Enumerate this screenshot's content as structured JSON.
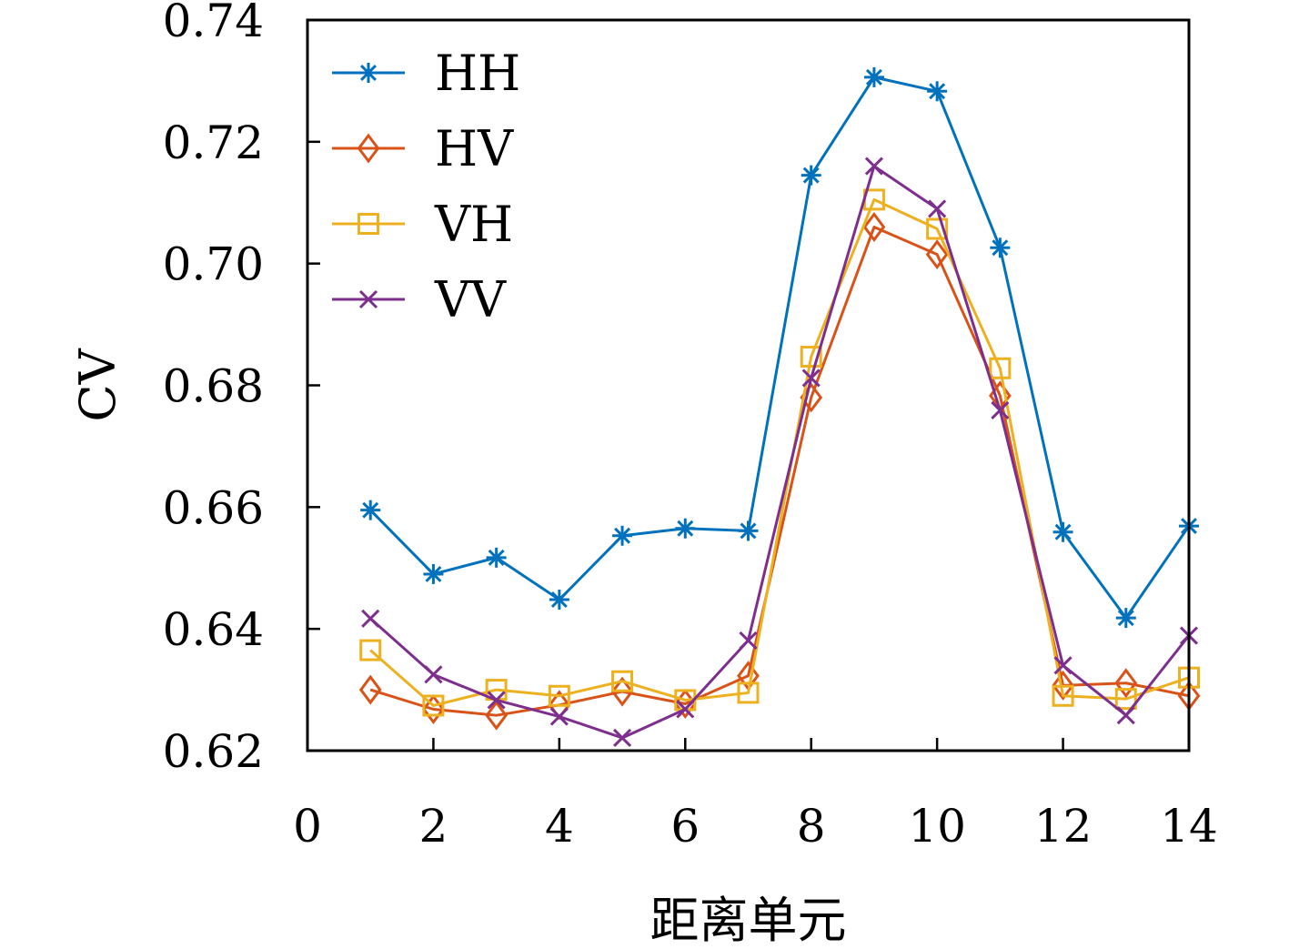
{
  "chart_data": {
    "type": "line",
    "title": "",
    "xlabel": "距离单元",
    "ylabel": "CV",
    "xlim": [
      0,
      14
    ],
    "ylim": [
      0.62,
      0.74
    ],
    "xticks": [
      "0",
      "2",
      "4",
      "6",
      "8",
      "10",
      "12",
      "14"
    ],
    "yticks": [
      "0.62",
      "0.64",
      "0.66",
      "0.68",
      "0.70",
      "0.72",
      "0.74"
    ],
    "grid": false,
    "legend_position": "top-left",
    "x": [
      1,
      2,
      3,
      4,
      5,
      6,
      7,
      8,
      9,
      10,
      11,
      12,
      13,
      14
    ],
    "series": [
      {
        "name": "HH",
        "color": "#0072BD",
        "marker": "asterisk",
        "values": [
          0.6595,
          0.649,
          0.6517,
          0.6448,
          0.6553,
          0.6565,
          0.6561,
          0.7145,
          0.7306,
          0.7283,
          0.7026,
          0.6559,
          0.6418,
          0.6569
        ]
      },
      {
        "name": "HV",
        "color": "#D95319",
        "marker": "diamond",
        "values": [
          0.63,
          0.6268,
          0.6258,
          0.6275,
          0.6297,
          0.6277,
          0.6323,
          0.678,
          0.706,
          0.7015,
          0.6783,
          0.6307,
          0.6311,
          0.629
        ]
      },
      {
        "name": "VH",
        "color": "#EDB120",
        "marker": "square",
        "values": [
          0.6365,
          0.6274,
          0.63,
          0.629,
          0.6314,
          0.6283,
          0.6295,
          0.6847,
          0.7105,
          0.7057,
          0.6828,
          0.629,
          0.6285,
          0.632
        ]
      },
      {
        "name": "VV",
        "color": "#7E2F8E",
        "marker": "x",
        "values": [
          0.6417,
          0.6325,
          0.6283,
          0.6256,
          0.6221,
          0.6268,
          0.6381,
          0.6812,
          0.716,
          0.709,
          0.6759,
          0.634,
          0.6258,
          0.6389
        ]
      }
    ]
  }
}
